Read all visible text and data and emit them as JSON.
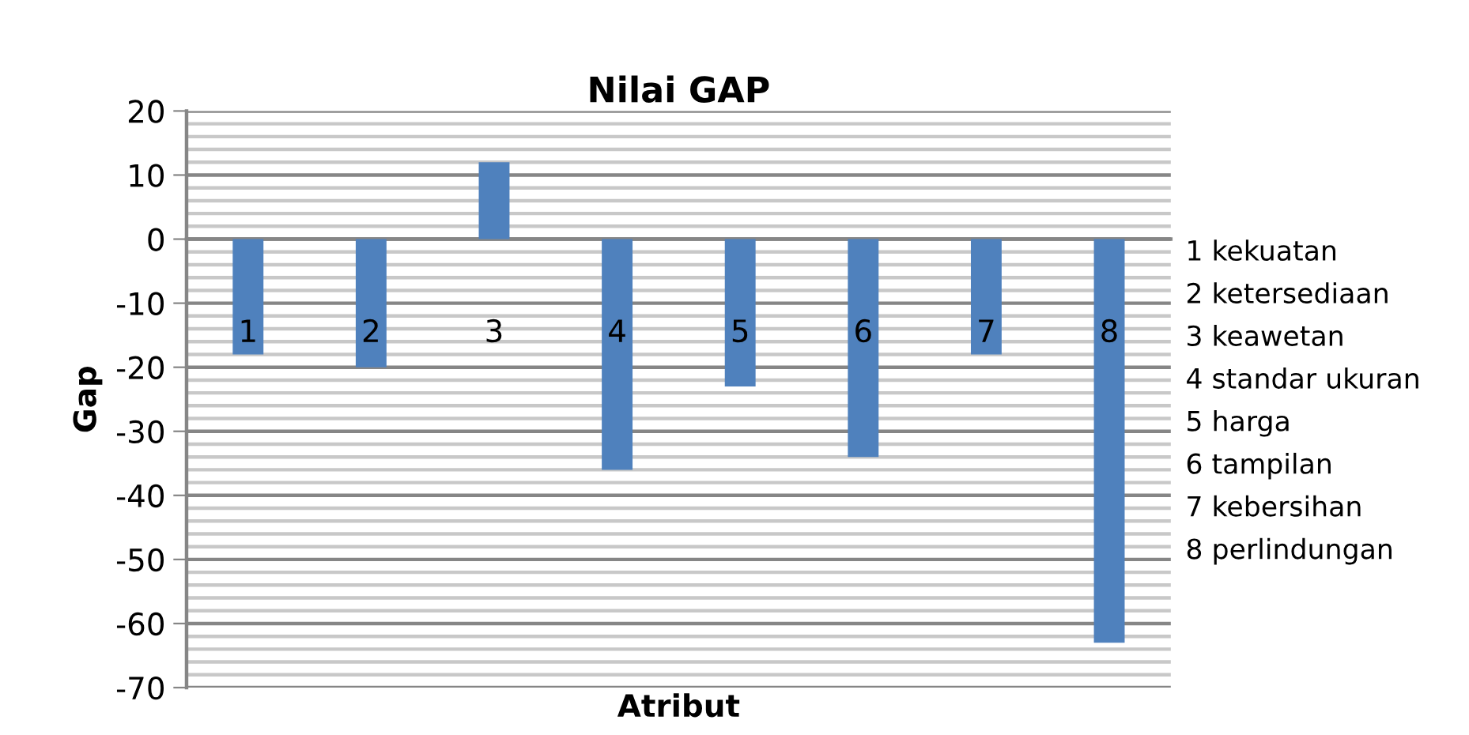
{
  "chart_data": {
    "type": "bar",
    "title": "Nilai GAP",
    "xlabel": "Atribut",
    "ylabel": "Gap",
    "categories": [
      "1",
      "2",
      "3",
      "4",
      "5",
      "6",
      "7",
      "8"
    ],
    "values": [
      -18,
      -20,
      12,
      -36,
      -23,
      -34,
      -18,
      -63
    ],
    "color": "#4f81bd",
    "ylim": [
      -70,
      20
    ],
    "yticks": [
      -70,
      -60,
      -50,
      -40,
      -30,
      -20,
      -10,
      0,
      10,
      20
    ],
    "grid": "y",
    "annotations": [
      "1 kekuatan",
      "2 ketersediaan",
      "3 keawetan",
      "4 standar ukuran",
      "5 harga",
      "6 tampilan",
      "7 kebersihan",
      "8 perlindungan"
    ]
  }
}
